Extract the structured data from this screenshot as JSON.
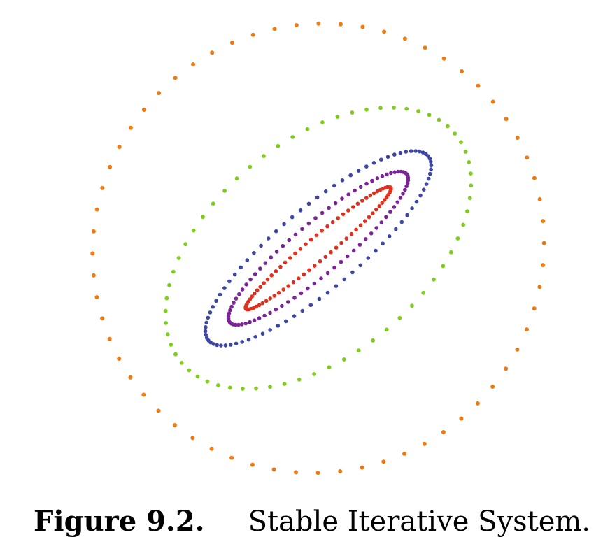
{
  "caption": {
    "label": "Figure 9.2.",
    "text": "Stable Iterative System."
  },
  "colors": {
    "orange": "#ee7a12",
    "green": "#7fcc1c",
    "blue": "#3d46a1",
    "purple": "#7a2496",
    "red": "#e0301e"
  },
  "chart_data": {
    "type": "scatter",
    "description": "Concentric elliptical orbits of iterates (nested ellipses shrinking toward the origin)",
    "series": [
      {
        "color": "#ee7a12",
        "points": 64
      },
      {
        "color": "#7fcc1c",
        "points": 64
      },
      {
        "color": "#3d46a1",
        "points": 84
      },
      {
        "color": "#7a2496",
        "points": 84
      },
      {
        "color": "#e0301e",
        "points": 84
      }
    ]
  }
}
